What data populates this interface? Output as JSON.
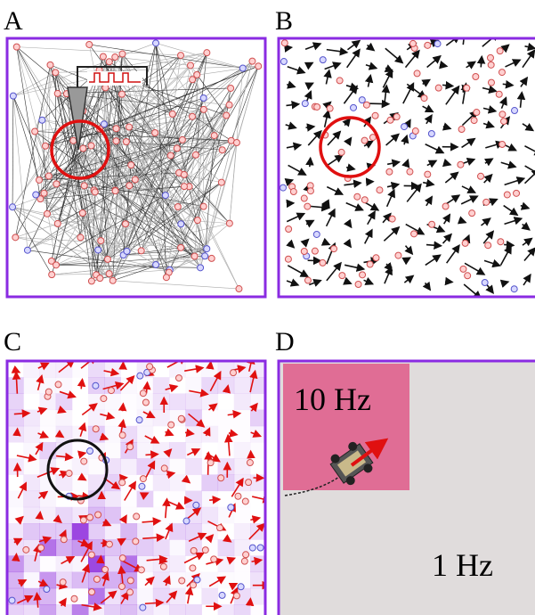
{
  "panels": [
    {
      "label": "A"
    },
    {
      "label": "B"
    },
    {
      "label": "C"
    },
    {
      "label": "D",
      "regions": [
        "10 Hz",
        "1 Hz"
      ]
    }
  ]
}
